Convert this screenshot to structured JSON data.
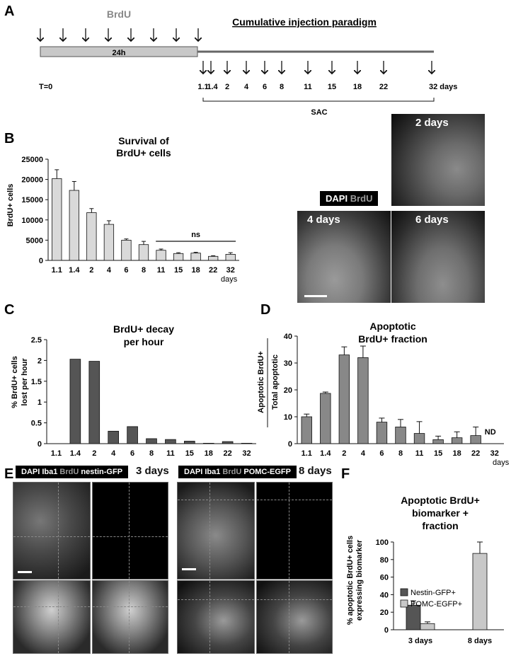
{
  "panel_a": {
    "letter": "A",
    "brdu_label": "BrdU",
    "bar_label": "24h",
    "paradigm_title": "Cumulative injection paradigm",
    "t0_label": "T=0",
    "timepoints": [
      "1.1",
      "1.4",
      "2",
      "4",
      "6",
      "8",
      "11",
      "15",
      "18",
      "22",
      "32 days"
    ],
    "sac_label": "SAC"
  },
  "panel_b": {
    "letter": "B",
    "ns_label": "ns",
    "days_label": "days",
    "micro": {
      "legend_dapi": "DAPI",
      "legend_brdu": "BrdU",
      "label_2": "2 days",
      "label_4": "4 days",
      "label_6": "6 days"
    }
  },
  "panel_c": {
    "letter": "C",
    "days_label": "days"
  },
  "panel_d": {
    "letter": "D",
    "nd_label": "ND",
    "days_label": "days"
  },
  "panel_e": {
    "letter": "E",
    "left_legend": [
      "DAPI",
      "Iba1",
      "BrdU",
      "nestin-GFP"
    ],
    "left_time": "3 days",
    "right_legend": [
      "DAPI",
      "Iba1",
      "BrdU",
      "POMC-EGFP"
    ],
    "right_time": "8 days"
  },
  "panel_f": {
    "letter": "F"
  },
  "colors": {
    "bar_light": "#d9d9d9",
    "bar_dark": "#555555",
    "bar_mid": "#888888",
    "bar_light_f": "#c8c8c8"
  },
  "chart_data": [
    {
      "id": "B",
      "type": "bar",
      "title": "Survival of BrdU+ cells",
      "ylabel": "BrdU+ cells",
      "xlabel": "days",
      "categories": [
        "1.1",
        "1.4",
        "2",
        "4",
        "6",
        "8",
        "11",
        "15",
        "18",
        "22",
        "32"
      ],
      "values": [
        20200,
        17300,
        11800,
        8900,
        5000,
        3900,
        2500,
        1700,
        1800,
        1000,
        1500
      ],
      "errors": [
        2200,
        2200,
        1000,
        900,
        300,
        800,
        300,
        200,
        200,
        150,
        400
      ],
      "ylim": [
        0,
        25000
      ],
      "yticks": [
        0,
        5000,
        10000,
        15000,
        20000,
        25000
      ],
      "annotation": "ns"
    },
    {
      "id": "C",
      "type": "bar",
      "title": "BrdU+ decay per hour",
      "ylabel": "% BrdU+ cells lost per hour",
      "xlabel": "days",
      "categories": [
        "1.1",
        "1.4",
        "2",
        "4",
        "6",
        "8",
        "11",
        "15",
        "18",
        "22",
        "32"
      ],
      "values": [
        0,
        2.03,
        1.98,
        0.3,
        0.41,
        0.12,
        0.1,
        0.06,
        0.01,
        0.05,
        0.01
      ],
      "ylim": [
        0,
        2.5
      ],
      "yticks": [
        0,
        0.5,
        1,
        1.5,
        2,
        2.5
      ]
    },
    {
      "id": "D",
      "type": "bar",
      "title": "Apoptotic BrdU+ fraction",
      "ylabel": "Apoptotic BrdU+",
      "ylabel2": "Total apoptotic",
      "xlabel": "days",
      "categories": [
        "1.1",
        "1.4",
        "2",
        "4",
        "6",
        "8",
        "11",
        "15",
        "18",
        "22",
        "32"
      ],
      "values": [
        10,
        18.7,
        33,
        32,
        8,
        6.2,
        3.8,
        1.5,
        2.2,
        3,
        null
      ],
      "errors": [
        1,
        0.5,
        3,
        4.3,
        1.5,
        2.8,
        4.4,
        1.3,
        2.2,
        3.2,
        null
      ],
      "ylim": [
        0,
        40
      ],
      "yticks": [
        0,
        10,
        20,
        30,
        40
      ],
      "annotation": "ND"
    },
    {
      "id": "F",
      "type": "bar",
      "title": "Apoptotic BrdU+ biomarker + fraction",
      "title_lines": [
        "Apoptotic BrdU+",
        "biomarker +",
        "fraction"
      ],
      "ylabel": "% apoptotic BrdU+ cells expressing biomarker",
      "ylabel_lines": [
        "% apoptotic BrdU+ cells",
        "expressing biomarker"
      ],
      "categories": [
        "3 days",
        "8 days"
      ],
      "series": [
        {
          "name": "Nestin-GFP+",
          "values": [
            28,
            null
          ],
          "errors": [
            5,
            null
          ]
        },
        {
          "name": "POMC-EGFP+",
          "values": [
            7,
            87
          ],
          "errors": [
            2,
            13
          ]
        }
      ],
      "ylim": [
        0,
        100
      ],
      "yticks": [
        0,
        20,
        40,
        60,
        80,
        100
      ],
      "legend": "middle-left"
    }
  ]
}
